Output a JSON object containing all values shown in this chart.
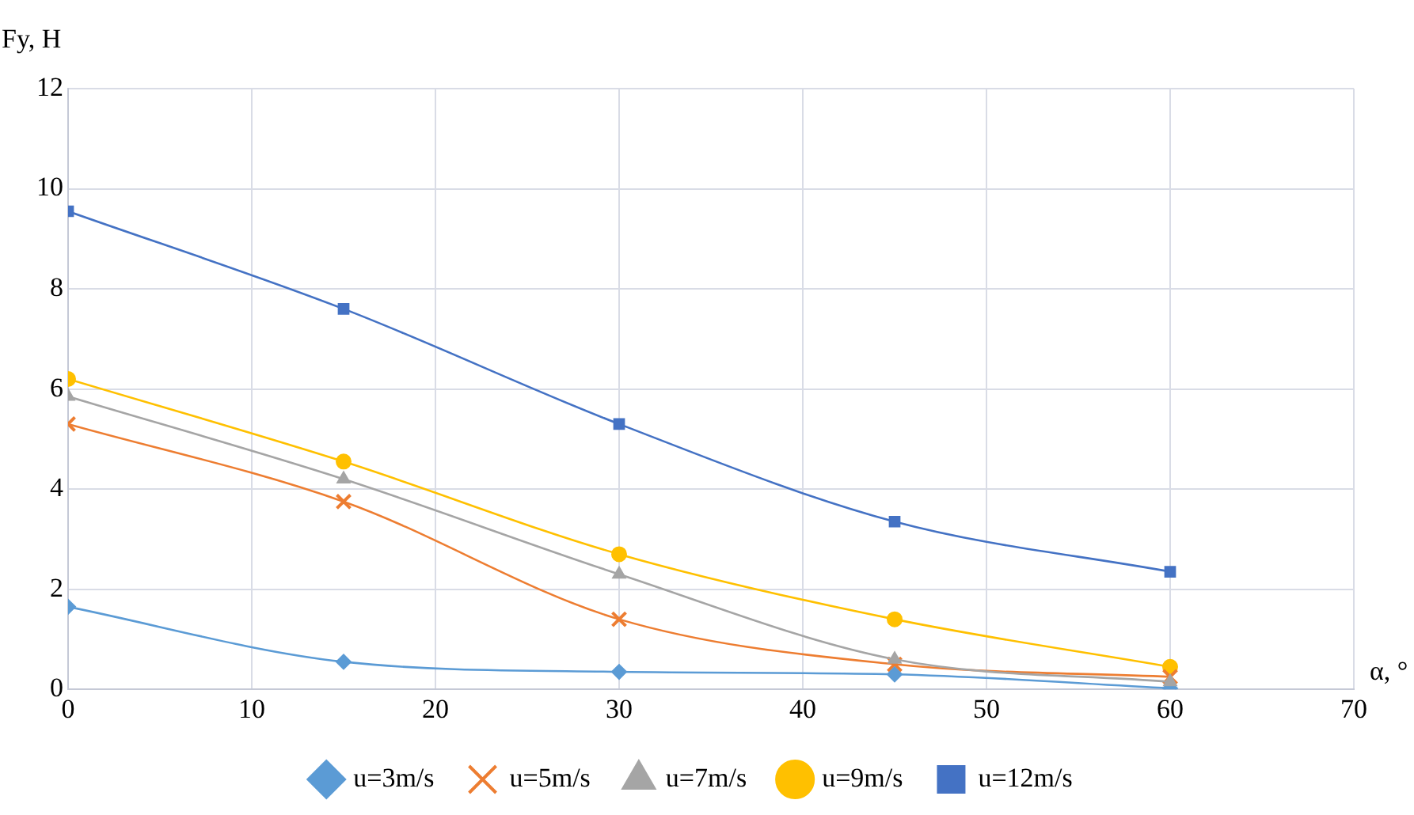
{
  "chart_data": {
    "type": "line",
    "xlabel": "α, °",
    "ylabel": "Fy, H",
    "x": [
      0,
      15,
      30,
      45,
      60
    ],
    "series": [
      {
        "name": "u=3m/s",
        "color": "#5b9bd5",
        "marker": "diamond",
        "values": [
          1.65,
          0.55,
          0.35,
          0.3,
          0.02
        ]
      },
      {
        "name": "u=5m/s",
        "color": "#ed7d31",
        "marker": "cross",
        "values": [
          5.3,
          3.75,
          1.4,
          0.5,
          0.25
        ]
      },
      {
        "name": "u=7m/s",
        "color": "#a5a5a5",
        "marker": "triangle",
        "values": [
          5.85,
          4.2,
          2.3,
          0.6,
          0.15
        ]
      },
      {
        "name": "u=9m/s",
        "color": "#ffc000",
        "marker": "circle",
        "values": [
          6.2,
          4.55,
          2.7,
          1.4,
          0.45
        ]
      },
      {
        "name": "u=12m/s",
        "color": "#4472c4",
        "marker": "square",
        "values": [
          9.55,
          7.6,
          5.3,
          3.35,
          2.35
        ]
      }
    ],
    "xlim": [
      0,
      70
    ],
    "xticks": [
      0,
      10,
      20,
      30,
      40,
      50,
      60,
      70
    ],
    "ylim": [
      0,
      12
    ],
    "yticks": [
      0,
      2,
      4,
      6,
      8,
      10,
      12
    ],
    "grid": true,
    "legend": "bottom"
  }
}
